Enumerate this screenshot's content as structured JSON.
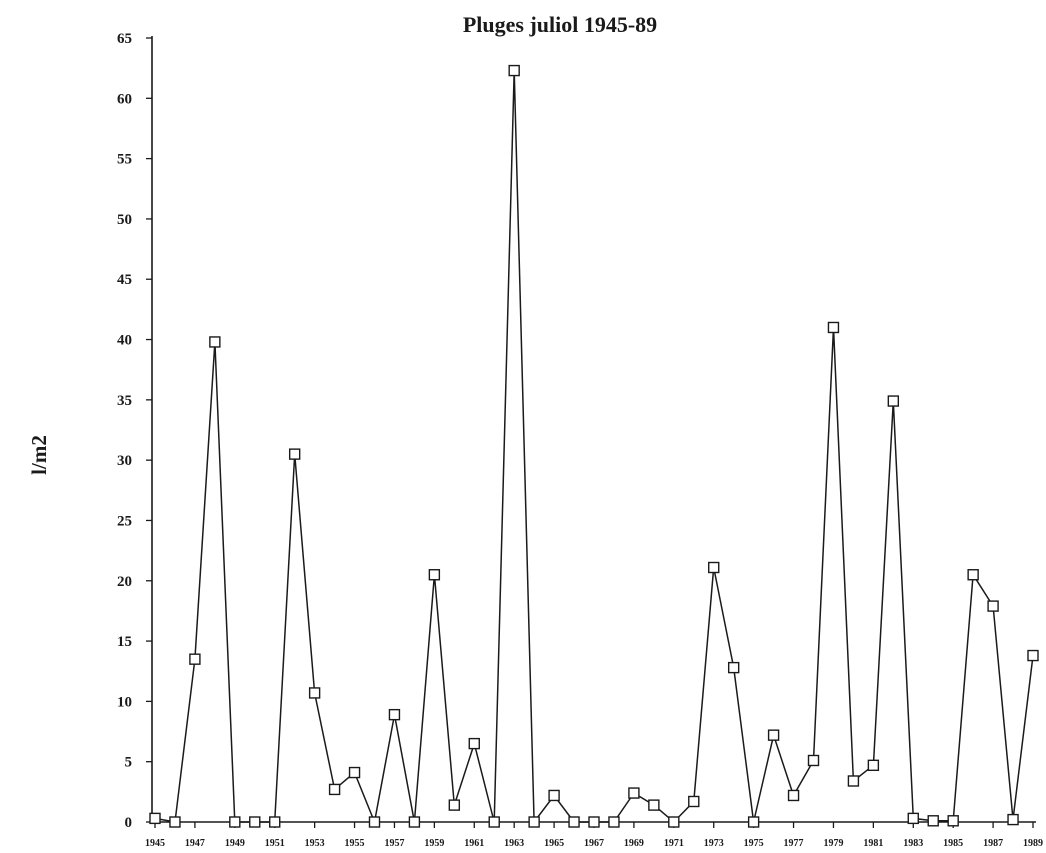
{
  "chart_data": {
    "type": "line",
    "title": "Pluges juliol 1945-89",
    "ylabel": "l/m2",
    "xlabel": "",
    "ylim": [
      0,
      65
    ],
    "yticks": [
      0,
      5,
      10,
      15,
      20,
      25,
      30,
      35,
      40,
      45,
      50,
      55,
      60,
      65
    ],
    "xlim": [
      1945,
      1989
    ],
    "xtick_labels": [
      "1945",
      "1947",
      "1949",
      "1951",
      "1953",
      "1955",
      "1957",
      "1959",
      "1961",
      "1963",
      "1965",
      "1967",
      "1969",
      "1971",
      "1973",
      "1975",
      "1977",
      "1979",
      "1981",
      "1983",
      "1985",
      "1987",
      "1989"
    ],
    "marker": "square",
    "grid": false,
    "series": [
      {
        "x": [
          1945,
          1946,
          1947,
          1948,
          1949,
          1950,
          1951,
          1952,
          1953,
          1954,
          1955,
          1956,
          1957,
          1958,
          1959,
          1960,
          1961,
          1962,
          1963,
          1964,
          1965,
          1966,
          1967,
          1968,
          1969,
          1970,
          1971,
          1972,
          1973,
          1974,
          1975,
          1976,
          1977,
          1978,
          1979,
          1980,
          1981,
          1982,
          1983,
          1984,
          1985,
          1986,
          1987,
          1988,
          1989
        ],
        "values": [
          0.3,
          0.0,
          13.5,
          39.8,
          0.0,
          0.0,
          0.0,
          30.5,
          10.7,
          2.7,
          4.1,
          0.0,
          8.9,
          0.0,
          20.5,
          1.4,
          6.5,
          0.0,
          62.3,
          0.0,
          2.2,
          0.0,
          0.0,
          0.0,
          2.4,
          1.4,
          0.0,
          1.7,
          21.1,
          12.8,
          0.0,
          7.2,
          2.2,
          5.1,
          41.0,
          3.4,
          4.7,
          34.9,
          0.3,
          0.1,
          0.1,
          20.5,
          17.9,
          0.2,
          13.8
        ]
      }
    ]
  }
}
